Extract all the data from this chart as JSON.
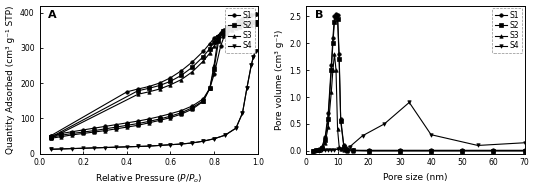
{
  "panel_A": {
    "label": "A",
    "xlabel": "Relative Pressure (",
    "xlabel_italic": "P",
    "xlabel_italic2": "P",
    "xlabel_sub": "o",
    "ylabel": "Quantity Adsorbed (cm³ g⁻¹ STP)",
    "xlim": [
      0.0,
      1.0
    ],
    "ylim": [
      0,
      420
    ],
    "yticks": [
      0,
      100,
      200,
      300,
      400
    ],
    "xticks": [
      0.0,
      0.2,
      0.4,
      0.6,
      0.8,
      1.0
    ],
    "series": {
      "S1": {
        "marker": "o",
        "markersize": 2.5,
        "linewidth": 0.8,
        "color": "#000000",
        "adsorption_x": [
          0.05,
          0.1,
          0.15,
          0.2,
          0.25,
          0.3,
          0.35,
          0.4,
          0.45,
          0.5,
          0.55,
          0.6,
          0.65,
          0.7,
          0.75,
          0.78,
          0.8,
          0.83,
          0.85,
          0.87,
          0.89,
          0.91,
          0.93,
          0.95,
          0.97,
          0.99
        ],
        "adsorption_y": [
          50,
          57,
          62,
          67,
          72,
          77,
          82,
          87,
          92,
          98,
          105,
          113,
          122,
          135,
          155,
          185,
          225,
          305,
          340,
          358,
          368,
          375,
          382,
          388,
          393,
          397
        ],
        "desorption_x": [
          0.99,
          0.97,
          0.95,
          0.93,
          0.91,
          0.89,
          0.87,
          0.85,
          0.83,
          0.8,
          0.78,
          0.75,
          0.7,
          0.65,
          0.6,
          0.55,
          0.5,
          0.45,
          0.4,
          0.05
        ],
        "desorption_y": [
          397,
          393,
          388,
          382,
          375,
          368,
          360,
          352,
          342,
          328,
          312,
          290,
          260,
          235,
          215,
          200,
          190,
          183,
          175,
          50
        ]
      },
      "S2": {
        "marker": "s",
        "markersize": 2.5,
        "linewidth": 0.8,
        "color": "#000000",
        "adsorption_x": [
          0.05,
          0.1,
          0.15,
          0.2,
          0.25,
          0.3,
          0.35,
          0.4,
          0.45,
          0.5,
          0.55,
          0.6,
          0.65,
          0.7,
          0.75,
          0.78,
          0.8,
          0.82,
          0.84,
          0.86,
          0.88,
          0.9,
          0.92,
          0.95,
          0.97,
          0.99
        ],
        "adsorption_y": [
          46,
          52,
          57,
          61,
          65,
          70,
          75,
          80,
          85,
          91,
          98,
          106,
          116,
          130,
          150,
          185,
          240,
          318,
          348,
          358,
          362,
          365,
          367,
          370,
          372,
          374
        ],
        "desorption_x": [
          0.99,
          0.97,
          0.95,
          0.92,
          0.9,
          0.88,
          0.86,
          0.84,
          0.82,
          0.8,
          0.78,
          0.75,
          0.7,
          0.65,
          0.6,
          0.55,
          0.5,
          0.45,
          0.05
        ],
        "desorption_y": [
          374,
          372,
          370,
          367,
          363,
          358,
          350,
          342,
          332,
          316,
          298,
          275,
          245,
          222,
          205,
          193,
          185,
          178,
          46
        ]
      },
      "S3": {
        "marker": "^",
        "markersize": 2.5,
        "linewidth": 0.8,
        "color": "#000000",
        "adsorption_x": [
          0.05,
          0.1,
          0.15,
          0.2,
          0.25,
          0.3,
          0.35,
          0.4,
          0.45,
          0.5,
          0.55,
          0.6,
          0.65,
          0.7,
          0.75,
          0.78,
          0.8,
          0.82,
          0.84,
          0.86,
          0.88,
          0.9,
          0.92,
          0.95,
          0.97,
          0.99
        ],
        "adsorption_y": [
          43,
          48,
          53,
          57,
          61,
          65,
          70,
          75,
          80,
          87,
          94,
          102,
          112,
          126,
          148,
          185,
          252,
          335,
          352,
          356,
          358,
          360,
          362,
          364,
          366,
          368
        ],
        "desorption_x": [
          0.99,
          0.97,
          0.95,
          0.92,
          0.9,
          0.88,
          0.86,
          0.84,
          0.82,
          0.8,
          0.78,
          0.75,
          0.7,
          0.65,
          0.6,
          0.55,
          0.5,
          0.45,
          0.05
        ],
        "desorption_y": [
          368,
          366,
          364,
          360,
          356,
          350,
          342,
          334,
          322,
          305,
          285,
          262,
          232,
          210,
          195,
          183,
          175,
          168,
          43
        ]
      },
      "S4": {
        "marker": "v",
        "markersize": 2.5,
        "linewidth": 0.8,
        "color": "#000000",
        "adsorption_x": [
          0.05,
          0.1,
          0.15,
          0.2,
          0.25,
          0.3,
          0.35,
          0.4,
          0.45,
          0.5,
          0.55,
          0.6,
          0.65,
          0.7,
          0.75,
          0.8,
          0.85,
          0.9,
          0.93,
          0.95,
          0.97,
          0.98,
          0.99
        ],
        "adsorption_y": [
          12,
          13,
          14,
          15,
          16,
          17,
          18,
          19,
          20,
          21,
          23,
          25,
          27,
          30,
          35,
          42,
          52,
          72,
          115,
          185,
          250,
          275,
          290
        ],
        "desorption_x": [
          0.99,
          0.98,
          0.97,
          0.95,
          0.93,
          0.9,
          0.85,
          0.8,
          0.75,
          0.7,
          0.65,
          0.6,
          0.55,
          0.5,
          0.45,
          0.05
        ],
        "desorption_y": [
          290,
          275,
          250,
          185,
          115,
          72,
          52,
          42,
          35,
          30,
          27,
          25,
          23,
          21,
          20,
          12
        ]
      }
    }
  },
  "panel_B": {
    "label": "B",
    "xlabel": "Pore size (nm)",
    "ylabel": "Pore volume (cm³ g⁻¹)",
    "xlim": [
      0,
      70
    ],
    "ylim": [
      -0.05,
      2.7
    ],
    "yticks": [
      0.0,
      0.5,
      1.0,
      1.5,
      2.0,
      2.5
    ],
    "xticks": [
      0,
      10,
      20,
      30,
      40,
      50,
      60,
      70
    ],
    "series": {
      "S1": {
        "marker": "o",
        "markersize": 2.5,
        "linewidth": 0.8,
        "color": "#000000",
        "x": [
          2,
          3,
          4,
          5,
          6,
          7,
          8,
          8.5,
          9,
          9.5,
          10,
          10.5,
          11,
          12,
          13,
          15,
          20,
          30,
          40,
          50,
          60,
          70
        ],
        "y": [
          0.0,
          0.01,
          0.03,
          0.08,
          0.25,
          0.7,
          1.6,
          2.1,
          2.5,
          2.55,
          2.52,
          1.8,
          0.6,
          0.1,
          0.03,
          0.01,
          0.01,
          0.01,
          0.01,
          0.01,
          0.01,
          0.01
        ]
      },
      "S2": {
        "marker": "s",
        "markersize": 2.5,
        "linewidth": 0.8,
        "color": "#000000",
        "x": [
          2,
          3,
          4,
          5,
          6,
          7,
          8,
          8.5,
          9,
          9.5,
          10,
          10.5,
          11,
          12,
          13,
          15,
          20,
          30,
          40,
          50,
          60,
          70
        ],
        "y": [
          0.0,
          0.01,
          0.02,
          0.06,
          0.2,
          0.6,
          1.5,
          2.0,
          2.4,
          2.48,
          2.45,
          1.7,
          0.55,
          0.08,
          0.02,
          0.01,
          0.0,
          0.0,
          0.0,
          0.0,
          0.0,
          0.0
        ]
      },
      "S3": {
        "marker": "^",
        "markersize": 2.5,
        "linewidth": 0.8,
        "color": "#000000",
        "x": [
          2,
          3,
          4,
          5,
          6,
          7,
          8,
          8.5,
          9,
          9.5,
          10,
          10.5,
          11,
          12,
          13,
          15,
          20,
          30,
          40,
          50,
          60,
          70
        ],
        "y": [
          0.0,
          0.01,
          0.02,
          0.05,
          0.15,
          0.45,
          1.1,
          1.5,
          1.8,
          1.5,
          0.4,
          0.08,
          0.03,
          0.01,
          0.0,
          0.0,
          0.0,
          0.0,
          0.0,
          0.0,
          0.0,
          0.0
        ]
      },
      "S4": {
        "marker": "v",
        "markersize": 2.5,
        "linewidth": 0.8,
        "color": "#000000",
        "x": [
          2,
          3,
          4,
          5,
          6,
          7,
          8,
          9,
          10,
          11,
          12,
          14,
          18,
          25,
          33,
          40,
          55,
          70
        ],
        "y": [
          0.0,
          0.0,
          0.0,
          0.01,
          0.01,
          0.02,
          0.02,
          0.02,
          0.03,
          0.04,
          0.05,
          0.08,
          0.28,
          0.5,
          0.9,
          0.3,
          0.1,
          0.15
        ]
      }
    }
  },
  "figure": {
    "background_color": "#ffffff",
    "fontsize_label": 6.5,
    "fontsize_tick": 5.5,
    "fontsize_legend": 5.5,
    "fontsize_panel_label": 8
  }
}
